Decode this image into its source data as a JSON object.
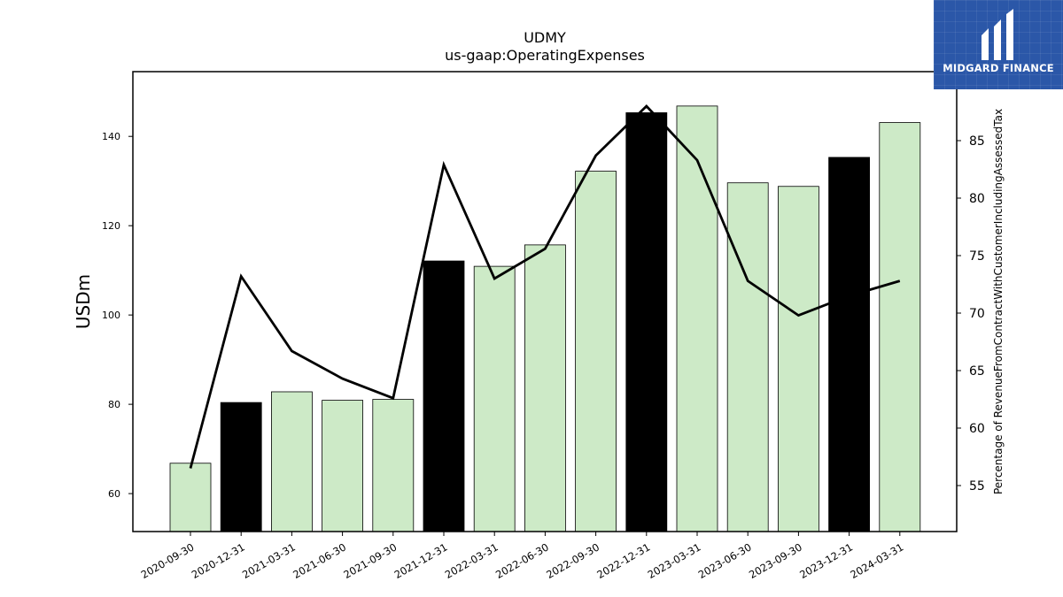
{
  "brand": {
    "name": "MIDGARD FINANCE",
    "bg_color": "#2b57a8"
  },
  "chart_data": {
    "type": "bar",
    "title": "UDMY",
    "subtitle": "us-gaap:OperatingExpenses",
    "ylabel": "USDm",
    "y2label": "Percentage of RevenueFromContractWithCustomerIncludingAssessedTax",
    "categories": [
      "2020-09-30",
      "2020-12-31",
      "2021-03-31",
      "2021-06-30",
      "2021-09-30",
      "2021-12-31",
      "2022-03-31",
      "2022-06-30",
      "2022-09-30",
      "2022-12-31",
      "2023-03-31",
      "2023-06-30",
      "2023-09-30",
      "2023-12-31",
      "2024-03-31"
    ],
    "series": [
      {
        "values": [
          66.8,
          80.4,
          82.8,
          80.9,
          81.1,
          112.1,
          110.9,
          115.7,
          132.2,
          145.3,
          146.8,
          129.6,
          128.8,
          135.3,
          143.1
        ]
      },
      {
        "type": "line",
        "axis": "right",
        "values": [
          56.5,
          73.2,
          66.7,
          64.3,
          62.6,
          82.9,
          73.0,
          75.6,
          83.7,
          88.0,
          83.3,
          72.8,
          69.8,
          71.5,
          72.8
        ]
      }
    ],
    "bar_colors": [
      "#cdeac7",
      "#000000",
      "#cdeac7",
      "#cdeac7",
      "#cdeac7",
      "#000000",
      "#cdeac7",
      "#cdeac7",
      "#cdeac7",
      "#000000",
      "#cdeac7",
      "#cdeac7",
      "#cdeac7",
      "#000000",
      "#cdeac7"
    ],
    "line_color": "#000000",
    "ylim": [
      51.5,
      154.5
    ],
    "y2lim": [
      51.0,
      91.0
    ],
    "yticks": [
      60,
      80,
      100,
      120,
      140
    ],
    "y2ticks": [
      55,
      60,
      65,
      70,
      75,
      80,
      85
    ],
    "grid": false,
    "legend": "none"
  }
}
